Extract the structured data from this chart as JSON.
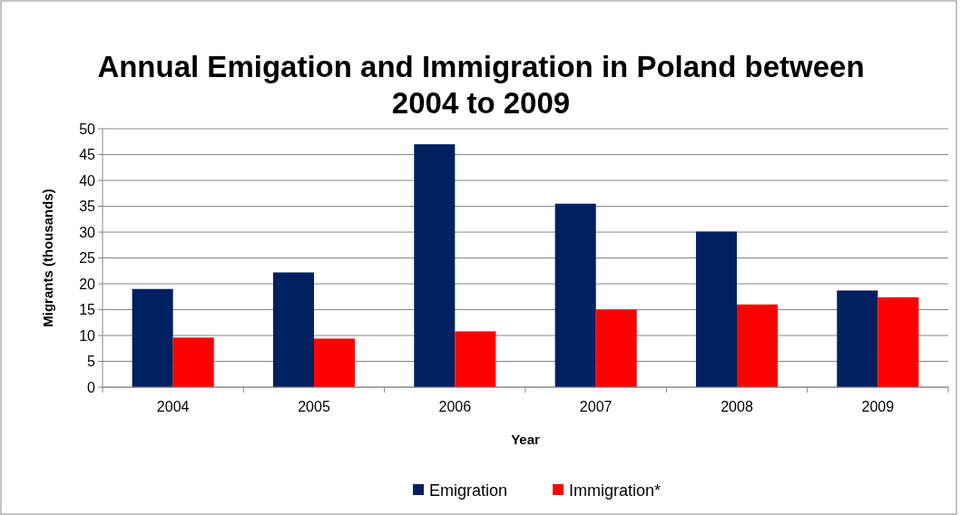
{
  "chart_data": {
    "type": "bar",
    "title": "Annual Emigation and Immigration in Poland between 2004 to 2009",
    "xlabel": "Year",
    "ylabel": "Migrants (thousands)",
    "categories": [
      "2004",
      "2005",
      "2006",
      "2007",
      "2008",
      "2009"
    ],
    "series": [
      {
        "name": "Emigration",
        "color": "#002060",
        "values": [
          19,
          22.2,
          47,
          35.5,
          30.1,
          18.7
        ]
      },
      {
        "name": "Immigration*",
        "color": "#ff0000",
        "values": [
          9.6,
          9.4,
          10.8,
          15,
          16,
          17.4
        ]
      }
    ],
    "ylim": [
      0,
      50
    ],
    "yticks": [
      0,
      5,
      10,
      15,
      20,
      25,
      30,
      35,
      40,
      45,
      50
    ],
    "grid": "y",
    "legend": "bottom"
  }
}
